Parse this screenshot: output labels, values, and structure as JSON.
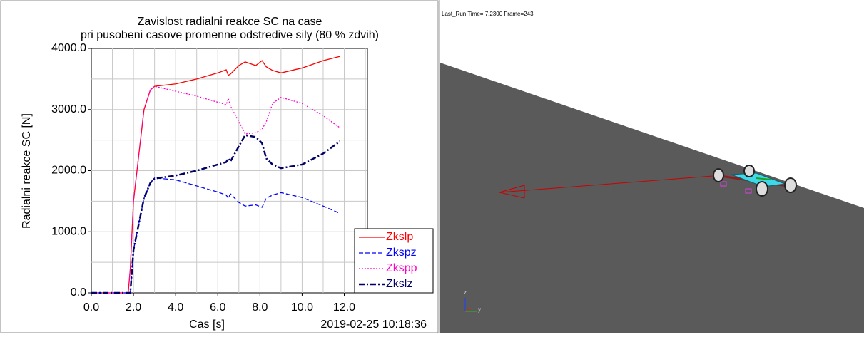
{
  "chart_data": {
    "type": "line",
    "title": "Zavislost radialni reakce SC na case",
    "subtitle": "pri pusobeni casove promenne odstredive sily (80 % zdvih)",
    "x_label": "Cas [s]",
    "y_label": "Radialni reakce SC [N]",
    "timestamp": "2019-02-25 10:18:36",
    "x": [
      0,
      1,
      1.75,
      1.85,
      2.0,
      2.5,
      2.8,
      3.0,
      4,
      5,
      6,
      6.4,
      6.5,
      6.6,
      7,
      7.3,
      7.8,
      8.1,
      8.3,
      8.6,
      9,
      10,
      11,
      11.8
    ],
    "series": [
      {
        "name": "Zkslp",
        "color": "#ff0000",
        "dash": "none",
        "values": [
          0,
          0,
          0,
          400,
          1500,
          3000,
          3320,
          3380,
          3420,
          3500,
          3600,
          3650,
          3560,
          3580,
          3720,
          3780,
          3720,
          3800,
          3700,
          3640,
          3600,
          3680,
          3800,
          3870
        ]
      },
      {
        "name": "Zkspz",
        "color": "#0000ff",
        "dash": "6 3",
        "values": [
          0,
          0,
          0,
          0,
          700,
          1550,
          1800,
          1880,
          1850,
          1750,
          1650,
          1600,
          1550,
          1620,
          1480,
          1420,
          1440,
          1400,
          1550,
          1600,
          1640,
          1560,
          1420,
          1300
        ]
      },
      {
        "name": "Zkspp",
        "color": "#ff00cc",
        "dash": "2 2",
        "values": [
          0,
          0,
          0,
          400,
          1500,
          3000,
          3320,
          3380,
          3300,
          3220,
          3120,
          3080,
          3180,
          3060,
          2800,
          2600,
          2620,
          2680,
          2800,
          3100,
          3200,
          3100,
          2900,
          2700
        ]
      },
      {
        "name": "Zkslz",
        "color": "#000066",
        "dash": "8 3 2 3",
        "values": [
          0,
          0,
          0,
          0,
          700,
          1550,
          1800,
          1870,
          1920,
          2000,
          2100,
          2140,
          2200,
          2150,
          2400,
          2580,
          2550,
          2450,
          2200,
          2100,
          2040,
          2100,
          2280,
          2480
        ]
      }
    ],
    "xlim": [
      0,
      13.1
    ],
    "ylim": [
      0,
      4000
    ],
    "xticks": [
      {
        "value": 0,
        "label": "0.0"
      },
      {
        "value": 2,
        "label": "2.0"
      },
      {
        "value": 4,
        "label": "4.0"
      },
      {
        "value": 6,
        "label": "6.0"
      },
      {
        "value": 8,
        "label": "8.0"
      },
      {
        "value": 10,
        "label": "10.0"
      },
      {
        "value": 12,
        "label": "12.0"
      }
    ],
    "yticks": [
      {
        "value": 0,
        "label": "0.0"
      },
      {
        "value": 1000,
        "label": "1000.0"
      },
      {
        "value": 2000,
        "label": "2000.0"
      },
      {
        "value": 3000,
        "label": "3000.0"
      },
      {
        "value": 4000,
        "label": "4000.0"
      }
    ],
    "xgrid": [
      1,
      2,
      3,
      4,
      5,
      6,
      7,
      8,
      9,
      10,
      11,
      12,
      13
    ],
    "ygrid": [
      500,
      1000,
      1500,
      2000,
      2500,
      3000,
      3500
    ],
    "grid": true,
    "legend": "lower right"
  },
  "viewport": {
    "info": "Last_Run   Time= 7.2300  Frame=243",
    "triad_z": "z",
    "triad_y": "y"
  }
}
